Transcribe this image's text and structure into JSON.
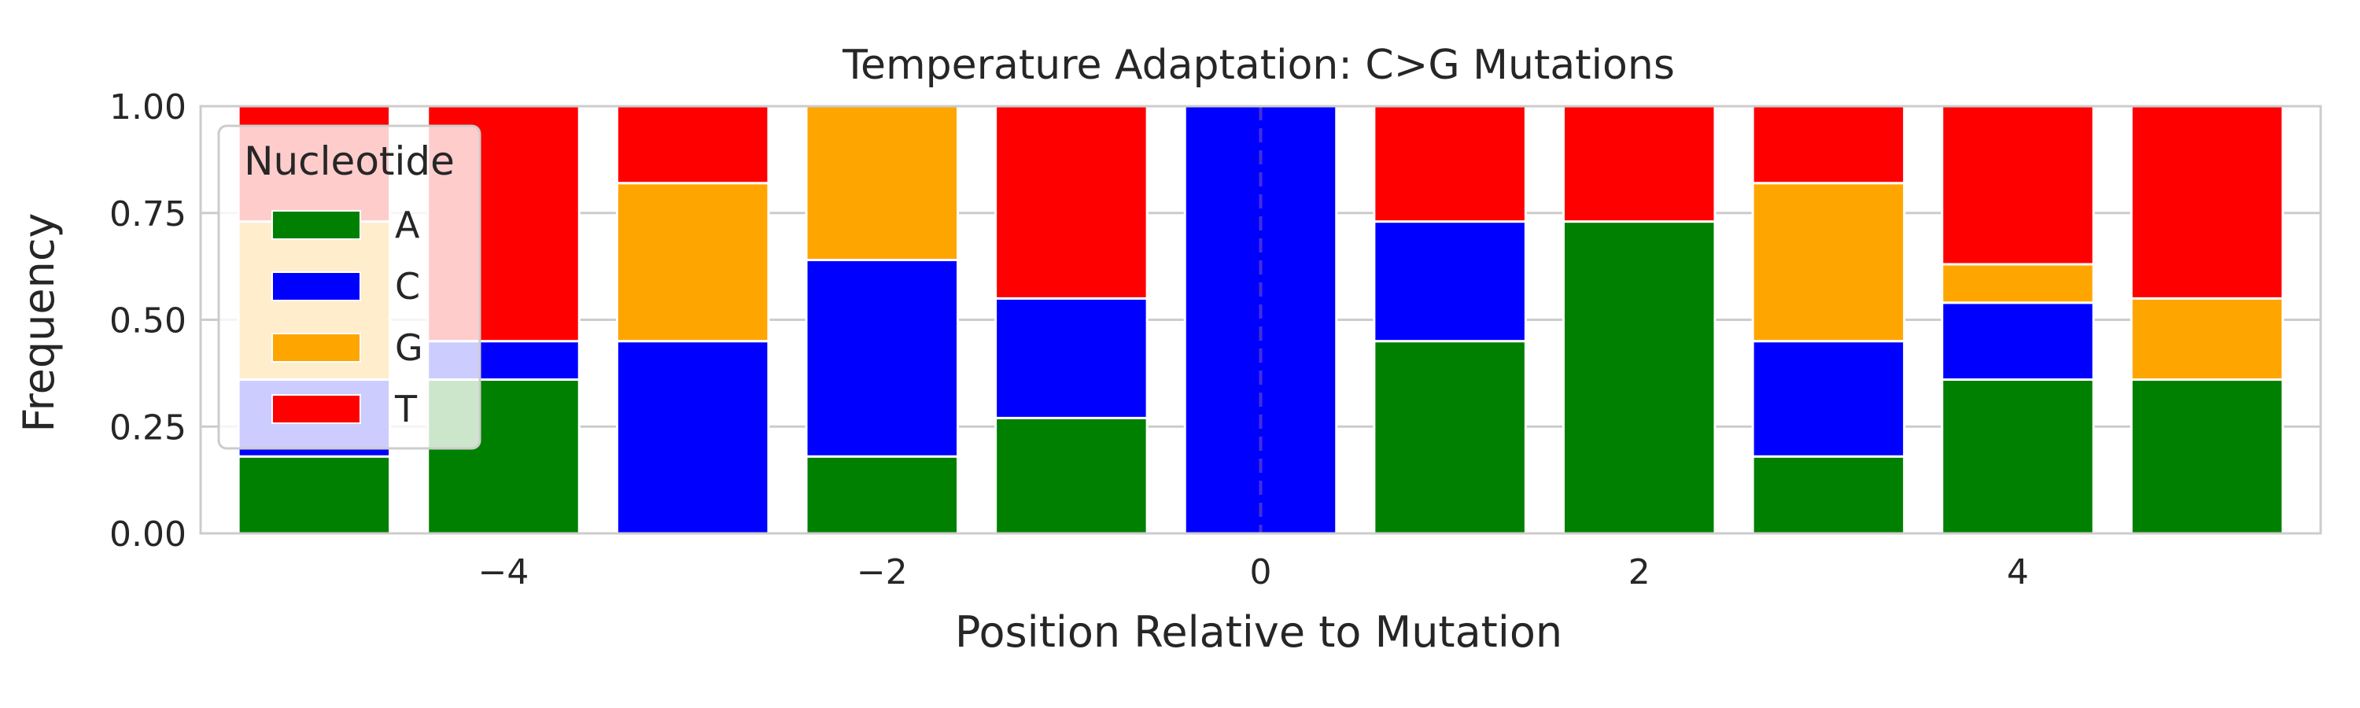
{
  "chart_data": {
    "type": "bar",
    "stacked": true,
    "title": "Temperature Adaptation: C>G Mutations",
    "xlabel": "Position Relative to Mutation",
    "ylabel": "Frequency",
    "x": [
      -5,
      -4,
      -3,
      -2,
      -1,
      0,
      1,
      2,
      3,
      4,
      5
    ],
    "xlim": [
      -5.6,
      5.6
    ],
    "ylim": [
      0,
      1
    ],
    "xticks": [
      -4,
      -2,
      0,
      2,
      4
    ],
    "xtick_labels": [
      "−4",
      "−2",
      "0",
      "2",
      "4"
    ],
    "yticks": [
      0,
      0.25,
      0.5,
      0.75,
      1
    ],
    "ytick_labels": [
      "0.00",
      "0.25",
      "0.50",
      "0.75",
      "1.00"
    ],
    "grid": "horizontal",
    "mutation_line": {
      "x": 0,
      "style": "dashed"
    },
    "series": [
      {
        "name": "A",
        "color": "#008000",
        "values": [
          0.18,
          0.36,
          0.0,
          0.18,
          0.27,
          0.0,
          0.45,
          0.73,
          0.18,
          0.36,
          0.36
        ]
      },
      {
        "name": "C",
        "color": "#0000ff",
        "values": [
          0.18,
          0.09,
          0.45,
          0.46,
          0.28,
          1.0,
          0.28,
          0.0,
          0.27,
          0.18,
          0.0
        ]
      },
      {
        "name": "G",
        "color": "#ffa500",
        "values": [
          0.37,
          0.0,
          0.37,
          0.36,
          0.0,
          0.0,
          0.0,
          0.0,
          0.37,
          0.09,
          0.19
        ]
      },
      {
        "name": "T",
        "color": "#ff0000",
        "values": [
          0.27,
          0.55,
          0.18,
          0.0,
          0.45,
          0.0,
          0.27,
          0.27,
          0.18,
          0.37,
          0.45
        ]
      }
    ],
    "legend": {
      "title": "Nucleotide",
      "placement": "upper-left"
    }
  }
}
